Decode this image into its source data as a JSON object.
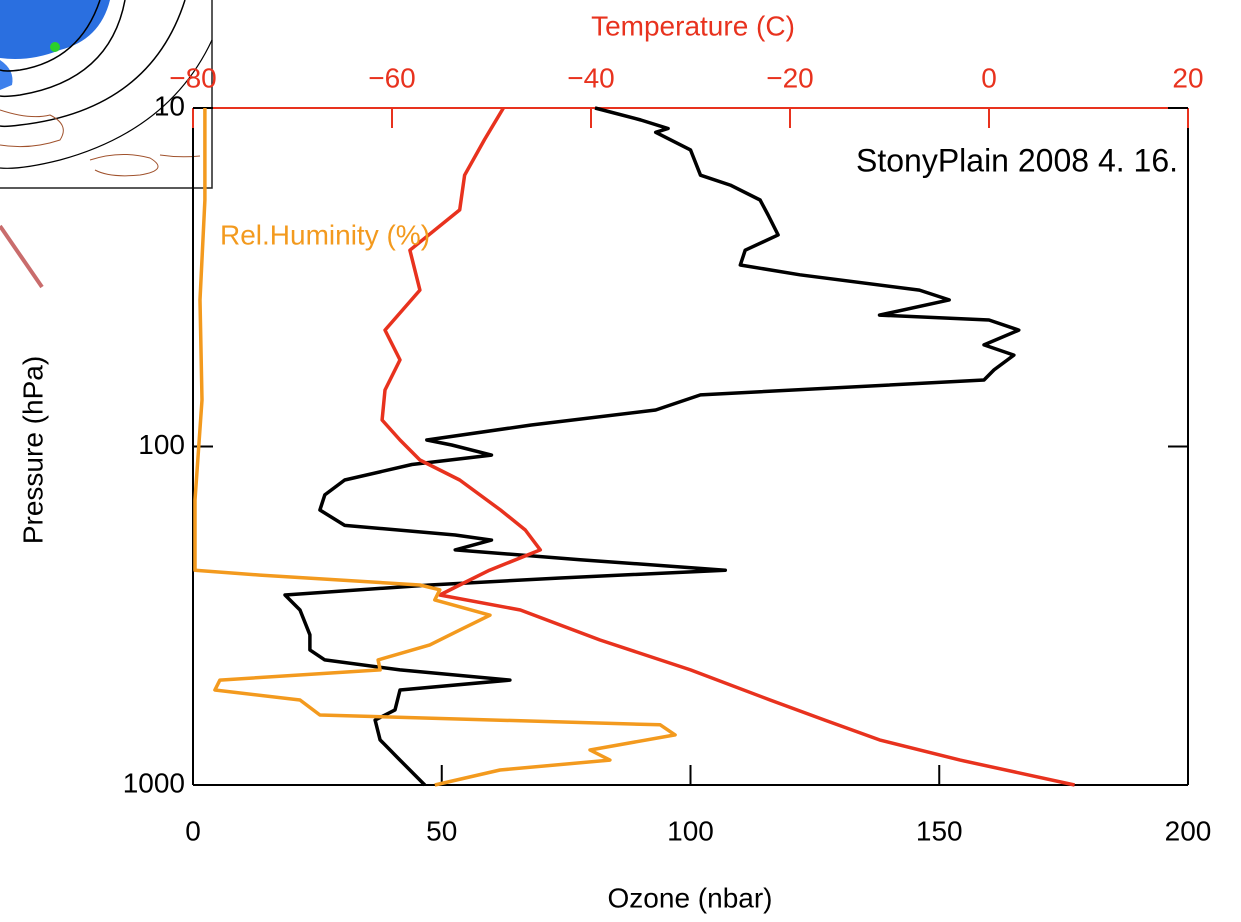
{
  "chart_data": {
    "type": "profile",
    "x_label": "Ozone (nbar)",
    "x2_label": "Temperature (C)",
    "y_label": "Pressure (hPa)",
    "annotation": "StonyPlain 2008 4. 16.",
    "xlim": [
      0,
      200
    ],
    "xticks": [
      0,
      50,
      100,
      150,
      200
    ],
    "x2lim": [
      -80,
      20
    ],
    "x2ticks": [
      {
        "value": -80,
        "label": "−80"
      },
      {
        "value": -60,
        "label": "−60"
      },
      {
        "value": -40,
        "label": "−40"
      },
      {
        "value": -20,
        "label": "−20"
      },
      0,
      20
    ],
    "x2_color": "#e8321e",
    "ylim": [
      10,
      1000
    ],
    "yticks": [
      10,
      100,
      1000
    ],
    "y_log": true,
    "y_inverted": true,
    "series": [
      {
        "color": "#000000",
        "x": [
          80.8,
          90,
          95.5,
          93,
          100,
          102,
          108,
          114,
          115.6,
          117.6,
          111,
          110,
          122,
          146,
          152,
          138,
          160,
          166,
          159,
          165,
          161,
          159,
          102,
          93,
          68,
          47,
          52,
          60,
          44,
          30.5,
          26.5,
          25.5,
          30.5,
          52.7,
          60,
          52.7,
          77.8,
          107,
          73.8,
          47.6,
          18.5,
          21.5,
          23.5,
          23.5,
          26.5,
          41.6,
          63.7,
          41.6,
          40.6,
          36.6,
          37.6,
          41.6,
          46.6
        ],
        "y": [
          10,
          10.85,
          11.5,
          11.8,
          13.3,
          15.8,
          16.9,
          18.7,
          20.7,
          23.7,
          26.3,
          29.1,
          31.1,
          34.5,
          36.9,
          40.9,
          42.3,
          45.3,
          50.1,
          53.7,
          59.4,
          63.6,
          70.4,
          78,
          86.4,
          95.7,
          99,
          106,
          113,
          125.6,
          139,
          154,
          171,
          182.6,
          189,
          202,
          216,
          232,
          244.6,
          256.5,
          274.6,
          304,
          360,
          399,
          427,
          457,
          490,
          524,
          600,
          643,
          736,
          844,
          1000
        ]
      },
      {
        "color": "#e8321e",
        "axis": "x2",
        "x": [
          -48.8,
          -50.7,
          -52.7,
          -53.2,
          -58.2,
          -57.2,
          -60.7,
          -59.2,
          -60.7,
          -61,
          -59.2,
          -57.2,
          -53.2,
          -49.1,
          -46.6,
          -45.1,
          -50.2,
          -53.2,
          -55.2,
          -47.1,
          -39.1,
          -30,
          -22,
          -16.5,
          -11,
          -2.9,
          8.6
        ],
        "y": [
          10,
          12.4,
          15.8,
          20,
          26.3,
          34.5,
          45.3,
          55.5,
          68.1,
          83.5,
          95.7,
          109.6,
          125.6,
          154,
          176.5,
          202,
          232,
          256.5,
          274.6,
          304,
          373,
          457,
          561,
          643,
          736,
          844,
          1000
        ]
      },
      {
        "name": "Rel.Huminity (%)",
        "color": "#f39a1e",
        "x": [
          2.4,
          2.4,
          1.4,
          1.8,
          0.4,
          0.4,
          13.5,
          45.6,
          49.6,
          48.6,
          59.7,
          53.7,
          47.6,
          37.2,
          37.6,
          5.4,
          4.4,
          21.5,
          25.5,
          93.9,
          96.9,
          79.8,
          83.8,
          61.7,
          48.6
        ],
        "y": [
          10,
          18.7,
          36.9,
          72.9,
          143.9,
          232,
          239.8,
          256.5,
          265,
          284,
          315,
          348,
          385.6,
          427,
          457,
          490,
          524,
          561,
          621,
          664,
          711,
          788,
          844,
          903,
          1000
        ]
      }
    ]
  }
}
